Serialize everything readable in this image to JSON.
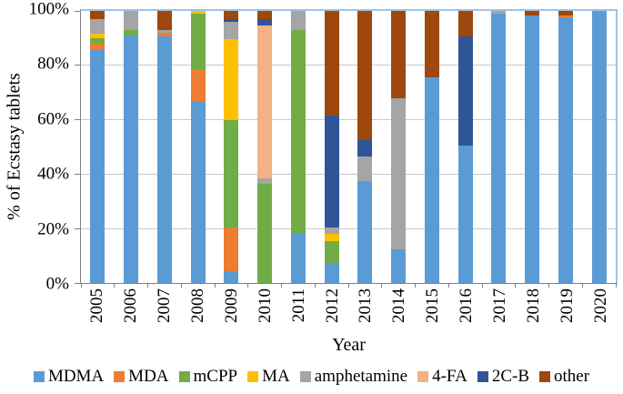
{
  "chart_data": {
    "type": "bar",
    "stacked": true,
    "xlabel": "Year",
    "ylabel": "% of Ecstasy tablets",
    "categories": [
      "2005",
      "2006",
      "2007",
      "2008",
      "2009",
      "2010",
      "2011",
      "2012",
      "2013",
      "2014",
      "2015",
      "2016",
      "2017",
      "2018",
      "2019",
      "2020"
    ],
    "y_ticks": [
      "0%",
      "20%",
      "40%",
      "60%",
      "80%",
      "100%"
    ],
    "ylim": [
      0,
      100
    ],
    "grid": true,
    "legend_position": "bottom",
    "colors": {
      "plot_border": "#9DC3E6",
      "axis": "#808080",
      "gridline": "#C9C9C9"
    },
    "series": [
      {
        "name": "MDMA",
        "color": "#5B9BD5",
        "values": [
          85.5,
          91,
          90.5,
          67,
          4.5,
          0,
          18.5,
          7.5,
          37.5,
          12.5,
          75.5,
          50.5,
          99,
          98.5,
          97.5,
          100
        ]
      },
      {
        "name": "MDA",
        "color": "#ED7D31",
        "values": [
          2.5,
          0,
          1.5,
          11.5,
          16,
          0,
          0,
          0,
          0,
          0,
          0,
          0,
          0,
          0,
          1,
          0
        ]
      },
      {
        "name": "mCPP",
        "color": "#70AD47",
        "values": [
          2,
          2,
          0,
          20.5,
          39.5,
          36.5,
          74.5,
          8,
          0,
          0,
          0,
          0,
          0,
          0,
          0,
          0
        ]
      },
      {
        "name": "MA",
        "color": "#FFC000",
        "values": [
          1.5,
          0,
          0,
          1,
          29.5,
          0,
          0,
          2.5,
          0,
          0,
          0,
          0,
          0,
          0,
          0,
          0
        ]
      },
      {
        "name": "amphetamine",
        "color": "#A5A5A5",
        "values": [
          5.5,
          7,
          1,
          0,
          6.5,
          2,
          7,
          2.5,
          9,
          55.5,
          0,
          0,
          1,
          0,
          0,
          0
        ]
      },
      {
        "name": "4-FA",
        "color": "#F4B183",
        "values": [
          0,
          0,
          0,
          0,
          0,
          56,
          0,
          0,
          0,
          0,
          0,
          0,
          0,
          0,
          0,
          0
        ]
      },
      {
        "name": "2C-B",
        "color": "#2F5597",
        "values": [
          0,
          0,
          0,
          0,
          1,
          2.5,
          0,
          41,
          6,
          0,
          0,
          40,
          0,
          0,
          0,
          0
        ]
      },
      {
        "name": "other",
        "color": "#9E480E",
        "values": [
          3,
          0,
          7,
          0,
          3,
          3,
          0,
          38.5,
          47.5,
          32,
          24.5,
          9.5,
          0,
          1.5,
          1.5,
          0
        ]
      }
    ]
  }
}
